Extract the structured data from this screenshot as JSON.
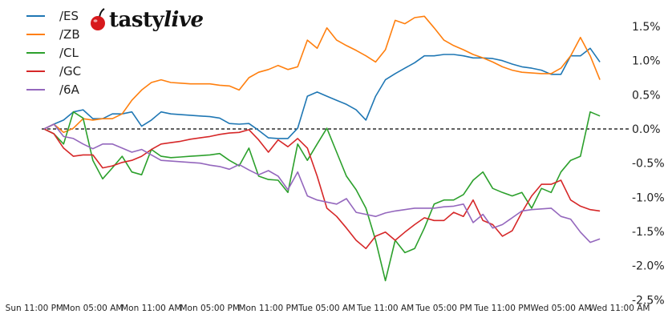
{
  "logo": {
    "text_bold": "tasty",
    "text_italic": "live",
    "accent": "#d7191c"
  },
  "chart_data": {
    "type": "line",
    "title": "",
    "xlabel": "",
    "ylabel": "",
    "ylim": [
      -2.5,
      1.75
    ],
    "y_axis_side": "right",
    "y_ticks": [
      "1.5%",
      "1.0%",
      "0.5%",
      "0.0%",
      "-0.5%",
      "-1.0%",
      "-1.5%",
      "-2.0%",
      "-2.5%"
    ],
    "y_tick_values": [
      1.5,
      1.0,
      0.5,
      0.0,
      -0.5,
      -1.0,
      -1.5,
      -2.0,
      -2.5
    ],
    "x_ticks": [
      "Sun 11:00 PM",
      "Mon 05:00 AM",
      "Mon 11:00 AM",
      "Mon 05:00 PM",
      "Mon 11:00 PM",
      "Tue 05:00 AM",
      "Tue 11:00 AM",
      "Tue 05:00 PM",
      "Tue 11:00 PM",
      "Wed 05:00 AM",
      "Wed 11:00 AM"
    ],
    "reference_line": {
      "y": 0,
      "style": "dashed",
      "color": "#000000"
    },
    "grid": false,
    "legend_position": "top-left",
    "x": [
      "Mon 12:00 AM",
      "Mon 01:00 AM",
      "Mon 02:00 AM",
      "Mon 03:00 AM",
      "Mon 04:00 AM",
      "Mon 05:00 AM",
      "Mon 06:00 AM",
      "Mon 07:00 AM",
      "Mon 08:00 AM",
      "Mon 09:00 AM",
      "Mon 10:00 AM",
      "Mon 11:00 AM",
      "Mon 12:00 PM",
      "Mon 01:00 PM",
      "Mon 02:00 PM",
      "Mon 03:00 PM",
      "Mon 04:00 PM",
      "Mon 05:00 PM",
      "Mon 06:00 PM",
      "Mon 07:00 PM",
      "Mon 08:00 PM",
      "Mon 09:00 PM",
      "Mon 10:00 PM",
      "Mon 11:00 PM",
      "Tue 12:00 AM",
      "Tue 01:00 AM",
      "Tue 02:00 AM",
      "Tue 03:00 AM",
      "Tue 04:00 AM",
      "Tue 05:00 AM",
      "Tue 06:00 AM",
      "Tue 07:00 AM",
      "Tue 08:00 AM",
      "Tue 09:00 AM",
      "Tue 10:00 AM",
      "Tue 11:00 AM",
      "Tue 12:00 PM",
      "Tue 01:00 PM",
      "Tue 02:00 PM",
      "Tue 03:00 PM",
      "Tue 04:00 PM",
      "Tue 05:00 PM",
      "Tue 06:00 PM",
      "Tue 07:00 PM",
      "Tue 08:00 PM",
      "Tue 09:00 PM",
      "Tue 10:00 PM",
      "Tue 11:00 PM",
      "Wed 12:00 AM",
      "Wed 01:00 AM",
      "Wed 02:00 AM",
      "Wed 03:00 AM",
      "Wed 04:00 AM",
      "Wed 05:00 AM",
      "Wed 06:00 AM",
      "Wed 07:00 AM",
      "Wed 08:00 AM",
      "Wed 09:00 AM"
    ],
    "series": [
      {
        "name": "/ES",
        "color": "#1f77b4",
        "values": [
          0,
          0.07,
          0.13,
          0.25,
          0.28,
          0.15,
          0.15,
          0.22,
          0.22,
          0.25,
          0.04,
          0.13,
          0.25,
          0.22,
          0.21,
          0.2,
          0.19,
          0.18,
          0.16,
          0.08,
          0.07,
          0.08,
          -0.02,
          -0.13,
          -0.14,
          -0.14,
          0.01,
          0.48,
          0.54,
          0.48,
          0.42,
          0.36,
          0.28,
          0.13,
          0.48,
          0.72,
          0.81,
          0.89,
          0.97,
          1.07,
          1.07,
          1.09,
          1.09,
          1.07,
          1.04,
          1.04,
          1.03,
          1.0,
          0.95,
          0.91,
          0.89,
          0.86,
          0.8,
          0.8,
          1.07,
          1.07,
          1.18,
          0.98
        ]
      },
      {
        "name": "/ZB",
        "color": "#ff7f0e",
        "values": [
          0,
          0.07,
          -0.05,
          0.01,
          0.15,
          0.13,
          0.15,
          0.15,
          0.22,
          0.42,
          0.57,
          0.68,
          0.72,
          0.68,
          0.67,
          0.66,
          0.66,
          0.66,
          0.64,
          0.63,
          0.57,
          0.75,
          0.83,
          0.87,
          0.93,
          0.87,
          0.91,
          1.3,
          1.18,
          1.48,
          1.3,
          1.22,
          1.15,
          1.07,
          0.98,
          1.16,
          1.59,
          1.54,
          1.63,
          1.65,
          1.48,
          1.3,
          1.22,
          1.16,
          1.09,
          1.04,
          0.98,
          0.91,
          0.86,
          0.83,
          0.82,
          0.81,
          0.81,
          0.89,
          1.07,
          1.34,
          1.07,
          0.72
        ]
      },
      {
        "name": "/CL",
        "color": "#2ca02c",
        "values": [
          0,
          -0.07,
          -0.22,
          0.25,
          0.16,
          -0.46,
          -0.73,
          -0.57,
          -0.4,
          -0.63,
          -0.67,
          -0.3,
          -0.4,
          -0.42,
          -0.41,
          -0.4,
          -0.39,
          -0.38,
          -0.36,
          -0.46,
          -0.54,
          -0.28,
          -0.69,
          -0.74,
          -0.75,
          -0.93,
          -0.22,
          -0.46,
          -0.22,
          0.01,
          -0.34,
          -0.69,
          -0.89,
          -1.16,
          -1.63,
          -2.22,
          -1.63,
          -1.81,
          -1.75,
          -1.45,
          -1.1,
          -1.04,
          -1.04,
          -0.96,
          -0.75,
          -0.63,
          -0.87,
          -0.93,
          -0.98,
          -0.93,
          -1.16,
          -0.87,
          -0.93,
          -0.63,
          -0.46,
          -0.4,
          0.25,
          0.19
        ]
      },
      {
        "name": "/GC",
        "color": "#d62728",
        "values": [
          0,
          -0.07,
          -0.28,
          -0.4,
          -0.38,
          -0.38,
          -0.57,
          -0.54,
          -0.49,
          -0.46,
          -0.4,
          -0.3,
          -0.22,
          -0.2,
          -0.18,
          -0.15,
          -0.13,
          -0.11,
          -0.08,
          -0.06,
          -0.05,
          -0.01,
          -0.16,
          -0.34,
          -0.16,
          -0.26,
          -0.14,
          -0.28,
          -0.69,
          -1.16,
          -1.28,
          -1.45,
          -1.63,
          -1.75,
          -1.57,
          -1.51,
          -1.63,
          -1.51,
          -1.4,
          -1.3,
          -1.34,
          -1.34,
          -1.22,
          -1.28,
          -1.04,
          -1.34,
          -1.4,
          -1.57,
          -1.49,
          -1.22,
          -0.98,
          -0.81,
          -0.81,
          -0.75,
          -1.04,
          -1.13,
          -1.18,
          -1.2
        ]
      },
      {
        "name": "/6A",
        "color": "#9467bd",
        "values": [
          0,
          0.07,
          -0.11,
          -0.14,
          -0.22,
          -0.29,
          -0.22,
          -0.22,
          -0.28,
          -0.34,
          -0.3,
          -0.38,
          -0.46,
          -0.47,
          -0.48,
          -0.49,
          -0.5,
          -0.53,
          -0.55,
          -0.59,
          -0.52,
          -0.6,
          -0.67,
          -0.61,
          -0.69,
          -0.89,
          -0.63,
          -0.98,
          -1.04,
          -1.07,
          -1.1,
          -1.02,
          -1.22,
          -1.25,
          -1.28,
          -1.23,
          -1.2,
          -1.18,
          -1.16,
          -1.16,
          -1.16,
          -1.14,
          -1.13,
          -1.1,
          -1.37,
          -1.25,
          -1.45,
          -1.4,
          -1.3,
          -1.2,
          -1.18,
          -1.17,
          -1.16,
          -1.28,
          -1.32,
          -1.51,
          -1.66,
          -1.61
        ]
      }
    ]
  }
}
